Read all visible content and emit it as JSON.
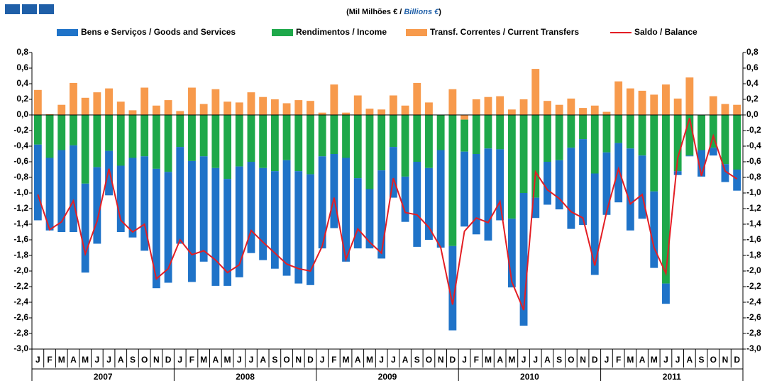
{
  "chart_data": {
    "type": "bar",
    "stacked": true,
    "title": [
      "(Mil Milhões € / ",
      "Billions €",
      ")"
    ],
    "categories": [
      "J",
      "F",
      "M",
      "A",
      "M",
      "J",
      "J",
      "A",
      "S",
      "O",
      "N",
      "D",
      "J",
      "F",
      "M",
      "A",
      "M",
      "J",
      "J",
      "A",
      "S",
      "O",
      "N",
      "D",
      "J",
      "F",
      "M",
      "A",
      "M",
      "J",
      "J",
      "A",
      "S",
      "O",
      "N",
      "D",
      "J",
      "F",
      "M",
      "A",
      "M",
      "J",
      "J",
      "A",
      "S",
      "O",
      "N",
      "D",
      "J",
      "F",
      "M",
      "A",
      "M",
      "J",
      "J",
      "A",
      "S",
      "O",
      "N",
      "D"
    ],
    "years": [
      "2007",
      "2008",
      "2009",
      "2010",
      "2011"
    ],
    "series": [
      {
        "name": "Bens e Serviços / Goods and Services",
        "color": "#1f73c8",
        "values": [
          -0.97,
          -0.93,
          -1.05,
          -1.11,
          -1.14,
          -0.98,
          -0.57,
          -0.85,
          -1.02,
          -1.21,
          -1.53,
          -1.42,
          -1.24,
          -1.55,
          -1.35,
          -1.51,
          -1.37,
          -1.42,
          -1.17,
          -1.18,
          -1.25,
          -1.48,
          -1.44,
          -1.42,
          -1.18,
          -0.95,
          -1.33,
          -0.9,
          -0.76,
          -1.13,
          -0.65,
          -0.58,
          -1.09,
          -0.92,
          -1.25,
          -1.08,
          -0.96,
          -1.03,
          -1.18,
          -0.91,
          -0.88,
          -1.7,
          -0.26,
          -0.55,
          -0.63,
          -1.04,
          -1.1,
          -1.3,
          -0.8,
          -0.76,
          -1.05,
          -0.81,
          -0.98,
          -0.26,
          -0.05,
          -0.01,
          -0.34,
          -0.1,
          -0.23,
          -0.27
        ]
      },
      {
        "name": "Rendimentos / Income",
        "color": "#1ea84a",
        "values": [
          -0.38,
          -0.55,
          -0.45,
          -0.39,
          -0.88,
          -0.67,
          -0.46,
          -0.65,
          -0.55,
          -0.53,
          -0.69,
          -0.73,
          -0.41,
          -0.59,
          -0.53,
          -0.68,
          -0.82,
          -0.66,
          -0.6,
          -0.68,
          -0.72,
          -0.58,
          -0.72,
          -0.76,
          -0.53,
          -0.5,
          -0.55,
          -0.81,
          -0.95,
          -0.71,
          -0.41,
          -0.79,
          -0.6,
          -0.68,
          -0.45,
          -1.68,
          -0.41,
          -0.5,
          -0.43,
          -0.44,
          -1.33,
          -1.0,
          -1.06,
          -0.6,
          -0.58,
          -0.42,
          -0.31,
          -0.75,
          -0.48,
          -0.36,
          -0.43,
          -0.52,
          -0.98,
          -2.16,
          -0.72,
          -0.52,
          -0.45,
          -0.42,
          -0.63,
          -0.7
        ]
      },
      {
        "name": "Transf. Correntes / Current Transfers",
        "color": "#f79a4c",
        "values": [
          0.32,
          0.01,
          0.13,
          0.41,
          0.22,
          0.29,
          0.34,
          0.17,
          0.06,
          0.35,
          0.12,
          0.19,
          0.05,
          0.35,
          0.14,
          0.33,
          0.17,
          0.16,
          0.29,
          0.23,
          0.2,
          0.15,
          0.19,
          0.18,
          0.03,
          0.39,
          0.03,
          0.25,
          0.08,
          0.07,
          0.25,
          0.12,
          0.41,
          0.16,
          0.0,
          0.33,
          -0.06,
          0.2,
          0.23,
          0.24,
          0.07,
          0.2,
          0.59,
          0.18,
          0.13,
          0.21,
          0.09,
          0.12,
          0.04,
          0.43,
          0.34,
          0.31,
          0.26,
          0.39,
          0.21,
          0.48,
          0.0,
          0.24,
          0.14,
          0.13
        ]
      },
      {
        "name": "Saldo / Balance",
        "type": "line",
        "color": "#e31e24",
        "values": [
          -1.02,
          -1.47,
          -1.37,
          -1.1,
          -1.78,
          -1.36,
          -0.69,
          -1.35,
          -1.5,
          -1.4,
          -2.1,
          -1.97,
          -1.6,
          -1.79,
          -1.74,
          -1.86,
          -2.02,
          -1.92,
          -1.48,
          -1.63,
          -1.77,
          -1.91,
          -1.97,
          -2.0,
          -1.68,
          -1.06,
          -1.85,
          -1.46,
          -1.63,
          -1.77,
          -0.81,
          -1.25,
          -1.28,
          -1.44,
          -1.7,
          -2.43,
          -1.49,
          -1.32,
          -1.38,
          -1.11,
          -2.14,
          -2.5,
          -0.73,
          -0.96,
          -1.07,
          -1.24,
          -1.32,
          -1.93,
          -1.24,
          -0.69,
          -1.14,
          -1.02,
          -1.7,
          -2.03,
          -0.55,
          -0.04,
          -0.78,
          -0.27,
          -0.72,
          -0.82
        ]
      }
    ],
    "ylim": [
      -3,
      0.8
    ],
    "yticks": [
      {
        "value": 0.8,
        "label": "0,8"
      },
      {
        "value": 0.6,
        "label": "0,6"
      },
      {
        "value": 0.4,
        "label": "0,4"
      },
      {
        "value": 0.2,
        "label": "0,2"
      },
      {
        "value": 0,
        "label": "0,0"
      },
      {
        "value": -0.2,
        "label": "-0,2"
      },
      {
        "value": -0.4,
        "label": "-0,4"
      },
      {
        "value": -0.6,
        "label": "-0,6"
      },
      {
        "value": -0.8,
        "label": "-0,8"
      },
      {
        "value": -1,
        "label": "-1,0"
      },
      {
        "value": -1.2,
        "label": "-1,2"
      },
      {
        "value": -1.4,
        "label": "-1,4"
      },
      {
        "value": -1.6,
        "label": "-1,6"
      },
      {
        "value": -1.8,
        "label": "-1,8"
      },
      {
        "value": -2,
        "label": "-2,0"
      },
      {
        "value": -2.2,
        "label": "-2,2"
      },
      {
        "value": -2.4,
        "label": "-2,4"
      },
      {
        "value": -2.6,
        "label": "-2,6"
      },
      {
        "value": -2.8,
        "label": "-2,8"
      },
      {
        "value": -3,
        "label": "-3,0"
      }
    ],
    "y2lim": [
      -3,
      0.8
    ],
    "y2ticks": [
      {
        "value": 0.8,
        "label": "0,8"
      },
      {
        "value": 0.6,
        "label": "0,6"
      },
      {
        "value": 0.4,
        "label": "0,4"
      },
      {
        "value": 0.2,
        "label": "0,2"
      },
      {
        "value": 0,
        "label": "0,0"
      },
      {
        "value": -0.2,
        "label": "-0,2"
      },
      {
        "value": -0.4,
        "label": "-0,4"
      },
      {
        "value": -0.6,
        "label": "-0,6"
      },
      {
        "value": -0.8,
        "label": "-0,8"
      },
      {
        "value": -1,
        "label": "-1,0"
      },
      {
        "value": -1.2,
        "label": "-1,2"
      },
      {
        "value": -1.4,
        "label": "-1,4"
      },
      {
        "value": -1.6,
        "label": "-1,6"
      },
      {
        "value": -1.8,
        "label": "-1,8"
      },
      {
        "value": -2,
        "label": "-2,0"
      },
      {
        "value": -2.2,
        "label": "-2,2"
      },
      {
        "value": -2.4,
        "label": "-2,4"
      },
      {
        "value": -2.6,
        "label": "-2,6"
      },
      {
        "value": -2.8,
        "label": "-2,8"
      },
      {
        "value": -3,
        "label": "-3,0"
      }
    ],
    "grid": false,
    "legend": "top"
  }
}
